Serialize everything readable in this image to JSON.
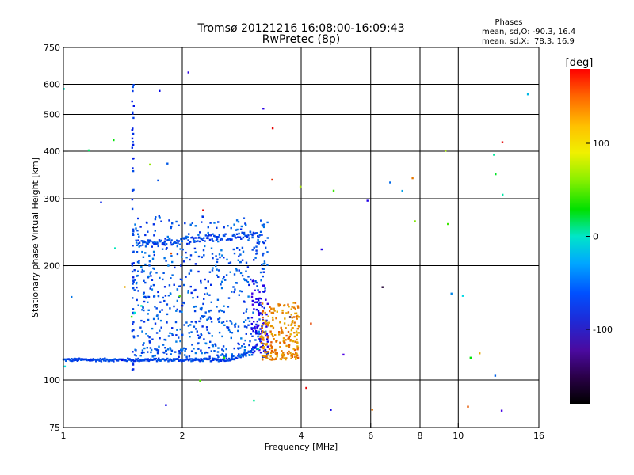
{
  "chart_data": {
    "type": "scatter",
    "title": "Tromsø 20121216 16:08:00-16:09:43",
    "subtitle": "RwPretec (8p)",
    "xlabel": "Frequency [MHz]",
    "ylabel": "Stationary phase Virtual Height [km]",
    "x_scale": "log",
    "y_scale": "log",
    "xlim": [
      1,
      16
    ],
    "ylim": [
      75,
      750
    ],
    "x_ticks": [
      1,
      2,
      4,
      6,
      8,
      10,
      16
    ],
    "x_tick_labels": [
      "1",
      "2",
      "4",
      "6",
      "8",
      "10",
      "16"
    ],
    "y_ticks": [
      75,
      100,
      200,
      300,
      400,
      500,
      600,
      750
    ],
    "y_tick_labels": [
      "75",
      "100",
      "200",
      "300",
      "400",
      "500",
      "600",
      "750"
    ],
    "grid": true,
    "info_box": {
      "heading": "Phases",
      "o_line": "mean, sd,O: -90.3, 16.4",
      "x_line": "mean, sd,X:  78.3, 16.9"
    },
    "colorbar": {
      "label": "[deg]",
      "range": [
        -180,
        180
      ],
      "ticks": [
        100,
        0,
        -100
      ],
      "tick_labels": [
        "100",
        "0",
        "-100"
      ]
    },
    "point_groups": [
      {
        "kind": "trace",
        "x_range": [
          1.0,
          3.1
        ],
        "y_range": [
          110,
          125
        ],
        "phase": -110,
        "count": 220
      },
      {
        "kind": "vertical",
        "x": 1.5,
        "y_range": [
          105,
          600
        ],
        "phase": -115,
        "count": 55
      },
      {
        "kind": "trace",
        "x_range": [
          1.55,
          3.2
        ],
        "y_range": [
          222,
          248
        ],
        "phase": -110,
        "count": 120
      },
      {
        "kind": "cloud",
        "x_range": [
          1.5,
          3.3
        ],
        "y_range": [
          115,
          270
        ],
        "phase": -105,
        "count": 650
      },
      {
        "kind": "cloud",
        "x_range": [
          3.0,
          3.3
        ],
        "y_range": [
          118,
          185
        ],
        "phase": -140,
        "count": 90
      },
      {
        "kind": "cloud",
        "x_range": [
          3.15,
          3.95
        ],
        "y_range": [
          113,
          160
        ],
        "phase": 120,
        "count": 220
      },
      {
        "kind": "scatter",
        "x_range": [
          1.0,
          16.0
        ],
        "y_range": [
          75,
          650
        ],
        "phase": "mixed",
        "count": 60
      }
    ]
  }
}
